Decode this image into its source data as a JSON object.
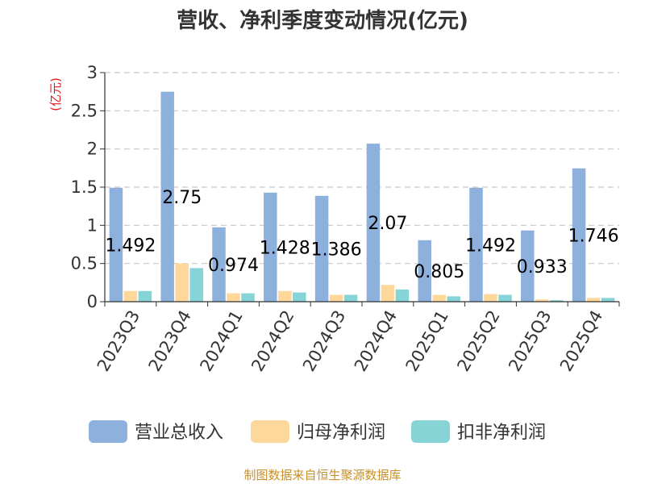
{
  "chart_data": {
    "type": "bar",
    "title": "营收、净利季度变动情况(亿元)",
    "ylabel": "(亿元)",
    "ylim": [
      0,
      3
    ],
    "yticks": [
      "0",
      "0.5",
      "1",
      "1.5",
      "2",
      "2.5",
      "3"
    ],
    "grid": true,
    "legend_position": "bottom",
    "categories": [
      "2023Q3",
      "2023Q4",
      "2024Q1",
      "2024Q2",
      "2024Q3",
      "2024Q4",
      "2025Q1",
      "2025Q2",
      "2025Q3",
      "2025Q4"
    ],
    "series": [
      {
        "name": "营业总收入",
        "color": "#8eb0dd",
        "values": [
          1.492,
          2.75,
          0.974,
          1.428,
          1.386,
          2.07,
          0.805,
          1.492,
          0.933,
          1.746
        ],
        "labels": [
          "1.492",
          "2.75",
          "0.974",
          "1.428",
          "1.386",
          "2.07",
          "0.805",
          "1.492",
          "0.933",
          "1.746"
        ]
      },
      {
        "name": "归母净利润",
        "color": "#fdd89a",
        "values": [
          0.14,
          0.5,
          0.11,
          0.14,
          0.09,
          0.22,
          0.09,
          0.1,
          0.03,
          0.05
        ]
      },
      {
        "name": "扣非净利润",
        "color": "#86d4d6",
        "values": [
          0.14,
          0.44,
          0.11,
          0.12,
          0.09,
          0.16,
          0.07,
          0.09,
          0.02,
          0.05
        ]
      }
    ]
  },
  "source": "制图数据来自恒生聚源数据库"
}
